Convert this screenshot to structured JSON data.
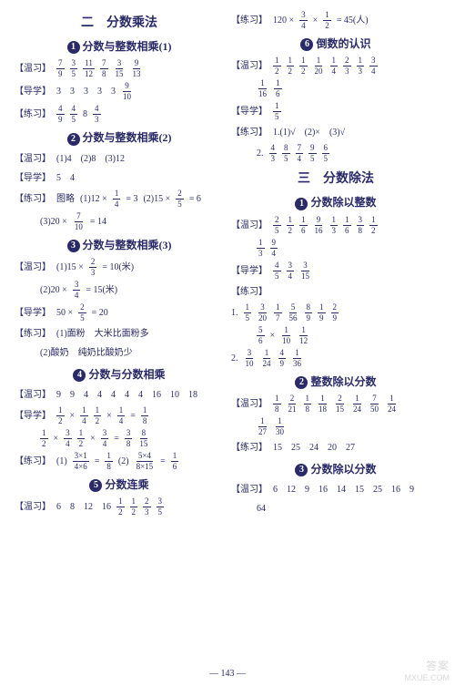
{
  "page_number": "143",
  "watermark": {
    "cn": "答案",
    "en": "MXUE.COM"
  },
  "left": {
    "h1": "二　分数乘法",
    "s1": {
      "num": "1",
      "title": "分数与整数相乘(1)",
      "wen_lbl": "【温习】",
      "wen_fracs": [
        [
          "7",
          "9"
        ],
        [
          "3",
          "5"
        ],
        [
          "11",
          "12"
        ],
        [
          "7",
          "8"
        ],
        [
          "3",
          "15"
        ],
        [
          "9",
          "13"
        ]
      ],
      "dao_lbl": "【导学】",
      "dao_txt": "3　3　3　3　3",
      "dao_frac": [
        "9",
        "10"
      ],
      "lian_lbl": "【练习】",
      "lian_fracs": [
        [
          "4",
          "9"
        ],
        [
          "4",
          "5"
        ]
      ],
      "lian_mix": [
        "8",
        [
          "4",
          "3"
        ]
      ]
    },
    "s2": {
      "num": "2",
      "title": "分数与整数相乘(2)",
      "wen_lbl": "【温习】",
      "wen_txt": "(1)4　(2)8　(3)12",
      "dao_lbl": "【导学】",
      "dao_txt": "5　4",
      "lian_lbl": "【练习】",
      "lian_pre": "图略",
      "eq1_a": "(1)12 ×",
      "eq1_f": [
        "1",
        "4"
      ],
      "eq1_b": "= 3",
      "eq2_a": "(2)15 ×",
      "eq2_f": [
        "2",
        "5"
      ],
      "eq2_b": "= 6",
      "eq3_a": "(3)20 ×",
      "eq3_f": [
        "7",
        "10"
      ],
      "eq3_b": "= 14"
    },
    "s3": {
      "num": "3",
      "title": "分数与整数相乘(3)",
      "wen_lbl": "【温习】",
      "eq1_a": "(1)15 ×",
      "eq1_f": [
        "2",
        "3"
      ],
      "eq1_b": "= 10(米)",
      "eq2_a": "(2)20 ×",
      "eq2_f": [
        "3",
        "4"
      ],
      "eq2_b": "= 15(米)",
      "dao_lbl": "【导学】",
      "dao_a": "50 ×",
      "dao_f": [
        "2",
        "5"
      ],
      "dao_b": "= 20",
      "lian_lbl": "【练习】",
      "lian1": "(1)面粉　大米比面粉多",
      "lian2": "(2)酸奶　纯奶比酸奶少"
    },
    "s4": {
      "num": "4",
      "title": "分数与分数相乘",
      "wen_lbl": "【温习】",
      "wen_txt": "9　9　4　4　4　4　4　16　10　18",
      "dao_lbl": "【导学】",
      "d1": {
        "f1": [
          "1",
          "2"
        ],
        "f2": [
          "1",
          "4"
        ],
        "f3": [
          "1",
          "2"
        ],
        "f4": [
          "1",
          "4"
        ],
        "f5": [
          "1",
          "8"
        ]
      },
      "d2": {
        "f1": [
          "1",
          "2"
        ],
        "f2": [
          "3",
          "4"
        ],
        "f3": [
          "1",
          "2"
        ],
        "f4": [
          "3",
          "4"
        ],
        "f5": [
          "3",
          "8"
        ],
        "f6": [
          "8",
          "15"
        ]
      },
      "lian_lbl": "【练习】",
      "l1": {
        "pre": "(1)",
        "f1": [
          "3×1",
          "4×6"
        ],
        "mid": "=",
        "f2": [
          "1",
          "8"
        ]
      },
      "l2": {
        "pre": "(2)",
        "f1": [
          "5×4",
          "8×15"
        ],
        "mid": "=",
        "f2": [
          "1",
          "6"
        ]
      }
    },
    "s5": {
      "num": "5",
      "title": "分数连乘",
      "wen_lbl": "【温习】",
      "wen_pre": "6　8　12　16",
      "wen_fracs": [
        [
          "1",
          "2"
        ],
        [
          "1",
          "2"
        ],
        [
          "2",
          "3"
        ],
        [
          "3",
          "5"
        ]
      ]
    }
  },
  "right": {
    "top_lbl": "【练习】",
    "top_a": "120 ×",
    "top_f1": [
      "3",
      "4"
    ],
    "top_m": "×",
    "top_f2": [
      "1",
      "2"
    ],
    "top_b": "= 45(人)",
    "s6": {
      "num": "6",
      "title": "倒数的认识",
      "wen_lbl": "【温习】",
      "wen_fracs": [
        [
          "1",
          "2"
        ],
        [
          "1",
          "2"
        ],
        [
          "1",
          "2"
        ],
        [
          "1",
          "20"
        ],
        [
          "1",
          "4"
        ],
        [
          "2",
          "3"
        ],
        [
          "1",
          "3"
        ],
        [
          "3",
          "4"
        ]
      ],
      "wen_fracs2": [
        [
          "1",
          "16"
        ],
        [
          "1",
          "6"
        ]
      ],
      "dao_lbl": "【导学】",
      "dao_f": [
        "1",
        "5"
      ],
      "lian_lbl": "【练习】",
      "lian1": "1.(1)√　(2)×　(3)√",
      "lian2_pre": "2.",
      "lian2_fracs": [
        [
          "4",
          "3"
        ],
        [
          "8",
          "5"
        ],
        [
          "7",
          "4"
        ],
        [
          "9",
          "5"
        ],
        [
          "6",
          "5"
        ]
      ]
    },
    "h1": "三　分数除法",
    "s1": {
      "num": "1",
      "title": "分数除以整数",
      "wen_lbl": "【温习】",
      "wen_fracs": [
        [
          "2",
          "5"
        ],
        [
          "1",
          "2"
        ],
        [
          "1",
          "6"
        ],
        [
          "9",
          "16"
        ],
        [
          "1",
          "3"
        ],
        [
          "1",
          "6"
        ],
        [
          "3",
          "8"
        ],
        [
          "1",
          "2"
        ]
      ],
      "wen_fracs2": [
        [
          "1",
          "3"
        ],
        [
          "9",
          "4"
        ]
      ],
      "dao_lbl": "【导学】",
      "dao_fracs": [
        [
          "4",
          "5"
        ],
        [
          "3",
          "4"
        ],
        [
          "3",
          "15"
        ]
      ],
      "lian_lbl": "【练习】",
      "l1_pre": "1.",
      "l1_fracs": [
        [
          "1",
          "5"
        ],
        [
          "3",
          "20"
        ],
        [
          "1",
          "7"
        ],
        [
          "5",
          "56"
        ],
        [
          "8",
          "9"
        ],
        [
          "1",
          "9"
        ],
        [
          "2",
          "9"
        ]
      ],
      "l1b_fracs": [
        [
          "5",
          "6"
        ]
      ],
      "l1b_mid": "×",
      "l1b_fracs2": [
        [
          "1",
          "10"
        ],
        [
          "1",
          "12"
        ]
      ],
      "l2_pre": "2.",
      "l2_fracs": [
        [
          "3",
          "10"
        ],
        [
          "1",
          "24"
        ],
        [
          "4",
          "9"
        ],
        [
          "1",
          "36"
        ]
      ]
    },
    "s2": {
      "num": "2",
      "title": "整数除以分数",
      "wen_lbl": "【温习】",
      "wen_fracs": [
        [
          "1",
          "8"
        ],
        [
          "2",
          "21"
        ],
        [
          "1",
          "8"
        ],
        [
          "1",
          "18"
        ],
        [
          "2",
          "15"
        ],
        [
          "1",
          "24"
        ],
        [
          "7",
          "50"
        ],
        [
          "1",
          "24"
        ]
      ],
      "wen_fracs2": [
        [
          "1",
          "27"
        ],
        [
          "1",
          "30"
        ]
      ],
      "lian_lbl": "【练习】",
      "lian_txt": "15　25　24　20　27"
    },
    "s3": {
      "num": "3",
      "title": "分数除以分数",
      "wen_lbl": "【温习】",
      "wen_txt": "6　12　9　16　14　15　25　16　9",
      "wen_txt2": "64"
    }
  }
}
